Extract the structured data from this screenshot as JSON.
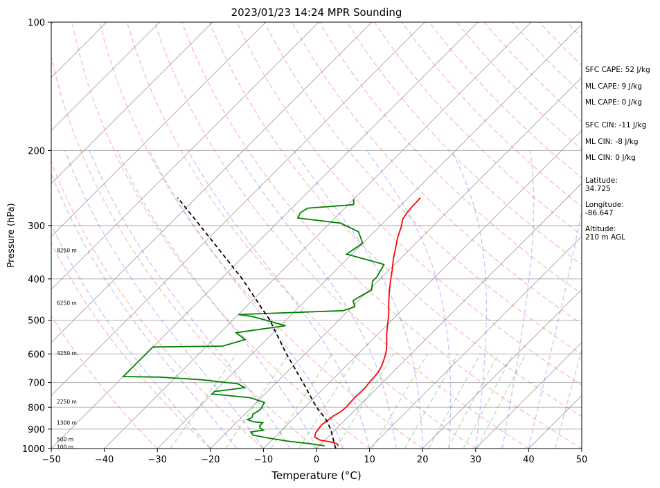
{
  "chart_data": {
    "type": "line",
    "diagram": "skew-T log-P",
    "title": "2023/01/23 14:24 MPR Sounding",
    "xlabel": "Temperature (°C)",
    "ylabel": "Pressure (hPa)",
    "xlim": [
      -50,
      50
    ],
    "ylim": [
      1000,
      100
    ],
    "y_scale": "log",
    "x_ticks": [
      -50,
      -40,
      -30,
      -20,
      -10,
      0,
      10,
      20,
      30,
      40,
      50
    ],
    "x_tick_labels": [
      "−50",
      "−40",
      "−30",
      "−20",
      "−10",
      "0",
      "10",
      "20",
      "30",
      "40",
      "50"
    ],
    "y_ticks": [
      1000,
      900,
      800,
      700,
      600,
      500,
      400,
      300,
      200,
      100
    ],
    "y_tick_labels": [
      "1000",
      "900",
      "800",
      "700",
      "600",
      "500",
      "400",
      "300",
      "200",
      "100"
    ],
    "grid": true,
    "series": [
      {
        "color": "#ff0000",
        "points": [
          [
            985,
            3.6
          ],
          [
            975,
            3
          ],
          [
            965,
            1.5
          ],
          [
            955,
            -1
          ],
          [
            940,
            -2.5
          ],
          [
            920,
            -3.1
          ],
          [
            900,
            -3.3
          ],
          [
            880,
            -3.5
          ],
          [
            860,
            -3.2
          ],
          [
            840,
            -3
          ],
          [
            820,
            -2.4
          ],
          [
            800,
            -2.2
          ],
          [
            780,
            -2.3
          ],
          [
            760,
            -2.4
          ],
          [
            740,
            -2.3
          ],
          [
            720,
            -2.3
          ],
          [
            700,
            -2.5
          ],
          [
            680,
            -2.6
          ],
          [
            660,
            -2.8
          ],
          [
            640,
            -3.3
          ],
          [
            620,
            -4
          ],
          [
            600,
            -4.8
          ],
          [
            580,
            -5.8
          ],
          [
            560,
            -7
          ],
          [
            540,
            -8.3
          ],
          [
            520,
            -9.5
          ],
          [
            500,
            -10.7
          ],
          [
            480,
            -12
          ],
          [
            460,
            -13.5
          ],
          [
            440,
            -15
          ],
          [
            420,
            -16.5
          ],
          [
            400,
            -18
          ],
          [
            380,
            -19.5
          ],
          [
            360,
            -21.2
          ],
          [
            340,
            -22.8
          ],
          [
            320,
            -24.5
          ],
          [
            300,
            -26
          ],
          [
            290,
            -27
          ],
          [
            280,
            -27.4
          ],
          [
            270,
            -27.6
          ],
          [
            258,
            -27.7
          ]
        ]
      },
      {
        "color": "#008000",
        "points": [
          [
            985,
            1
          ],
          [
            975,
            -2
          ],
          [
            960,
            -7
          ],
          [
            945,
            -11
          ],
          [
            930,
            -14.5
          ],
          [
            915,
            -15.5
          ],
          [
            905,
            -13.5
          ],
          [
            895,
            -14.5
          ],
          [
            885,
            -15
          ],
          [
            870,
            -15
          ],
          [
            865,
            -17
          ],
          [
            855,
            -18.5
          ],
          [
            845,
            -18
          ],
          [
            830,
            -18.5
          ],
          [
            815,
            -18
          ],
          [
            805,
            -18
          ],
          [
            795,
            -18.2
          ],
          [
            780,
            -18.5
          ],
          [
            760,
            -22
          ],
          [
            745,
            -30
          ],
          [
            735,
            -30
          ],
          [
            720,
            -25
          ],
          [
            705,
            -27
          ],
          [
            690,
            -34.5
          ],
          [
            680,
            -43
          ],
          [
            678,
            -50
          ],
          [
            578,
            -50
          ],
          [
            575,
            -37
          ],
          [
            555,
            -34
          ],
          [
            535,
            -37
          ],
          [
            515,
            -29
          ],
          [
            490,
            -37
          ],
          [
            485,
            -40
          ],
          [
            475,
            -21
          ],
          [
            465,
            -19.5
          ],
          [
            450,
            -21
          ],
          [
            440,
            -20.5
          ],
          [
            425,
            -19.5
          ],
          [
            405,
            -21
          ],
          [
            395,
            -21
          ],
          [
            370,
            -22
          ],
          [
            350,
            -31
          ],
          [
            330,
            -30
          ],
          [
            310,
            -33
          ],
          [
            296,
            -38
          ],
          [
            288,
            -47
          ],
          [
            280,
            -47.5
          ],
          [
            273,
            -47
          ],
          [
            268,
            -39
          ],
          [
            260,
            -40
          ]
        ]
      },
      {
        "color": "#000000",
        "line_style": "dashed",
        "points": [
          [
            1000,
            3.6
          ],
          [
            900,
            -1
          ],
          [
            850,
            -4
          ],
          [
            800,
            -7.8
          ],
          [
            700,
            -15
          ],
          [
            600,
            -23.5
          ],
          [
            500,
            -33
          ],
          [
            400,
            -46
          ],
          [
            300,
            -64
          ],
          [
            258,
            -73.5
          ]
        ]
      }
    ],
    "height_labels": [
      {
        "p": 990,
        "text": "100 m"
      },
      {
        "p": 950,
        "text": "500 m"
      },
      {
        "p": 870,
        "text": "1300 m"
      },
      {
        "p": 775,
        "text": "2250 m"
      },
      {
        "p": 597,
        "text": "4250 m"
      },
      {
        "p": 455,
        "text": "6250 m"
      },
      {
        "p": 343,
        "text": "8250 m"
      }
    ],
    "annotations": [
      "SFC CAPE: 52 J/kg",
      "ML CAPE: 9 J/kg",
      "ML CAPE: 0 J/kg",
      "SFC CIN: -11 J/kg",
      "ML CIN: -8 J/kg",
      "ML CIN: 0 J/kg",
      "Latitude:",
      "34.725",
      "Longitude:",
      "-86.647",
      "Altitude:",
      "210 m AGL"
    ],
    "dry_adiabats_color": "#ff0000",
    "moist_adiabats_color": "#0000ff",
    "mixing_ratio_color": "#008000",
    "isotherm_color": "#000000"
  }
}
